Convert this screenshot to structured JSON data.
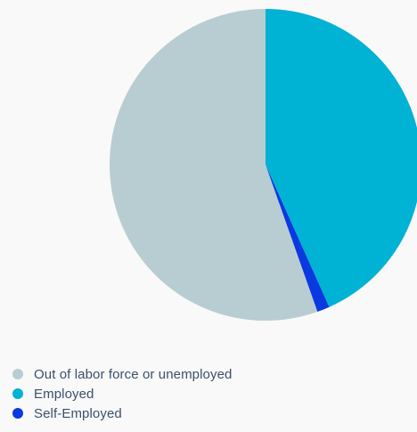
{
  "chart_data": {
    "type": "pie",
    "title": "",
    "categories": [
      "Out of labor force or unemployed",
      "Employed",
      "Self-Employed"
    ],
    "values": [
      55.4,
      43.3,
      1.3
    ],
    "colors": [
      "#b8cdd1",
      "#00b2d3",
      "#0a39e0"
    ],
    "start_angle_deg": 0,
    "direction": "clockwise",
    "legend_position": "bottom-left"
  }
}
